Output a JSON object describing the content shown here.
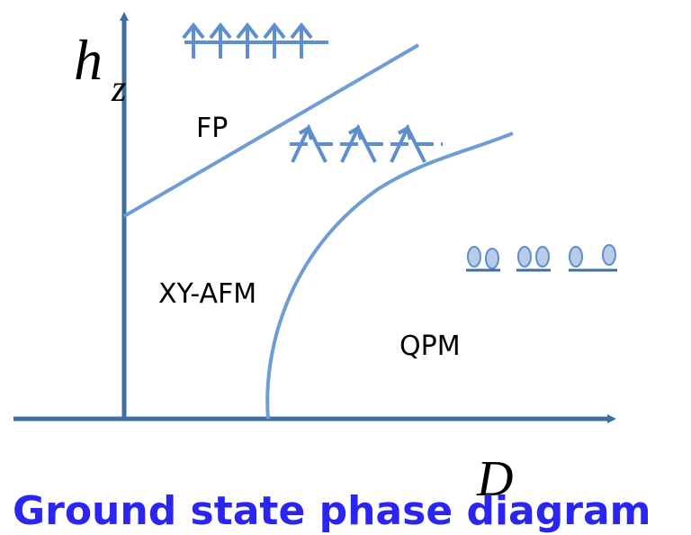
{
  "axes": {
    "y_label": "h",
    "y_label_sub": "z",
    "x_label": "D"
  },
  "regions": [
    {
      "label": "FP"
    },
    {
      "label": "XY-AFM"
    },
    {
      "label": "QPM"
    }
  ],
  "title": "Ground state phase diagram"
}
